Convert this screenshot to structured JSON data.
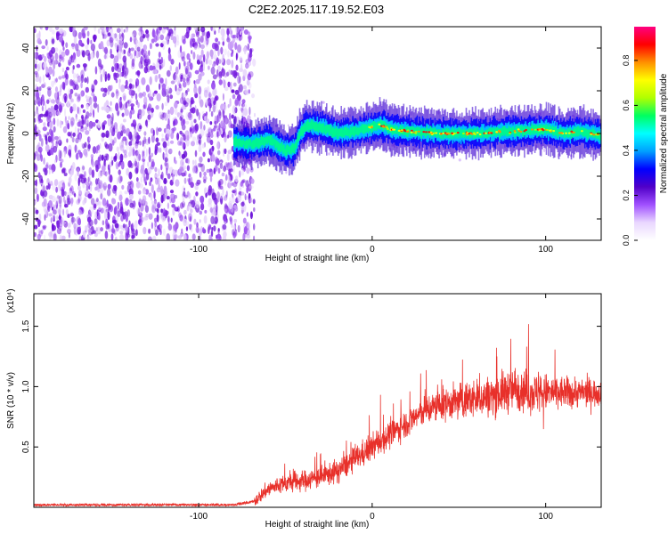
{
  "figure": {
    "title": "C2E2.2025.117.19.52.E03"
  },
  "colors": {
    "snr_line": "#e8302a",
    "spectro_bg_low": "#ffffff",
    "spectro_dominant": "#7a1fe0",
    "colorscale": [
      "#ffffff",
      "#e9d7ff",
      "#a050ff",
      "#5000c8",
      "#0000ff",
      "#00a0ff",
      "#00ffff",
      "#00ff60",
      "#b0ff00",
      "#ffff00",
      "#ff9000",
      "#ff0000",
      "#ff0080"
    ]
  },
  "chart_data": [
    {
      "type": "heatmap",
      "panel": "spectrogram",
      "xlabel": "Height of straight line (km)",
      "ylabel": "Frequency (Hz)",
      "xlim": [
        -195,
        132
      ],
      "ylim": [
        -50,
        50
      ],
      "xticks": [
        -100,
        0,
        100
      ],
      "yticks": [
        -40,
        -20,
        0,
        20,
        40
      ],
      "colorbar": {
        "label": "Normalized spectral amplitude",
        "range": [
          0,
          0.95
        ],
        "ticks": [
          0.0,
          0.2,
          0.4,
          0.6,
          0.8
        ]
      },
      "noise_region_x": [
        -195,
        -68
      ],
      "signal_start_x": -80,
      "signal_center_hz": {
        "x": [
          -80,
          -70,
          -60,
          -50,
          -45,
          -42,
          -38,
          -30,
          -20,
          -10,
          0,
          5,
          10,
          20,
          40,
          60,
          80,
          100,
          110,
          120,
          132
        ],
        "y": [
          -4,
          -5,
          -3,
          -8,
          -7,
          0,
          4,
          3,
          0,
          1,
          3,
          4,
          2,
          1,
          0,
          0,
          1,
          2,
          0,
          1,
          -1
        ]
      },
      "peak_amplitude_x": [
        10,
        100
      ],
      "peak_amplitude": 0.9
    },
    {
      "type": "line",
      "panel": "snr",
      "xlabel": "Height of straight line (km)",
      "ylabel": "SNR (10 * v/v)",
      "y_multiplier": "(x10⁴)",
      "xlim": [
        -195,
        132
      ],
      "ylim": [
        0,
        1.77
      ],
      "xticks": [
        -100,
        0,
        100
      ],
      "yticks": [
        0.5,
        1.0,
        1.5
      ],
      "series": [
        {
          "x": [
            -195,
            -160,
            -120,
            -80,
            -68,
            -60,
            -50,
            -40,
            -30,
            -20,
            -10,
            0,
            10,
            20,
            30,
            40,
            50,
            60,
            70,
            80,
            85,
            90,
            100,
            110,
            120,
            132
          ],
          "y": [
            0.02,
            0.02,
            0.02,
            0.02,
            0.05,
            0.15,
            0.2,
            0.22,
            0.25,
            0.3,
            0.4,
            0.5,
            0.6,
            0.7,
            0.8,
            0.85,
            0.88,
            0.9,
            0.93,
            0.97,
            1.0,
            0.95,
            0.95,
            0.95,
            0.95,
            0.95
          ],
          "noise": [
            0.01,
            0.01,
            0.01,
            0.01,
            0.08,
            0.12,
            0.14,
            0.15,
            0.16,
            0.17,
            0.18,
            0.2,
            0.2,
            0.2,
            0.22,
            0.24,
            0.26,
            0.28,
            0.3,
            0.32,
            0.35,
            0.3,
            0.28,
            0.24,
            0.22,
            0.2
          ]
        }
      ]
    }
  ]
}
